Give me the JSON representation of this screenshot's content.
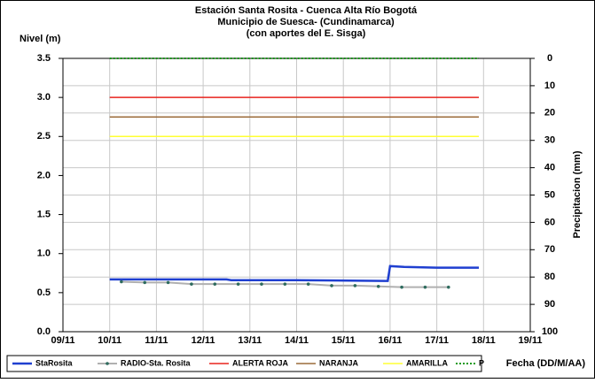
{
  "chart_data": {
    "type": "line",
    "title": [
      "Estación Santa Rosita - Cuenca Alta Río Bogotá",
      "Municipio de Suesca- (Cundinamarca)",
      "(con aportes del  E. Sisga)"
    ],
    "ylabel": "Nivel (m)",
    "y2label": "Precipitacion (mm)",
    "xlabel": "Fecha (DD/M/AA)",
    "xlim": [
      9,
      19
    ],
    "xticks": [
      {
        "value": 9,
        "label": "09/11"
      },
      {
        "value": 10,
        "label": "10/11"
      },
      {
        "value": 11,
        "label": "11/11"
      },
      {
        "value": 12,
        "label": "12/11"
      },
      {
        "value": 13,
        "label": "13/11"
      },
      {
        "value": 14,
        "label": "14/11"
      },
      {
        "value": 15,
        "label": "15/11"
      },
      {
        "value": 16,
        "label": "16/11"
      },
      {
        "value": 17,
        "label": "17/11"
      },
      {
        "value": 18,
        "label": "18/11"
      },
      {
        "value": 19,
        "label": "19/11"
      }
    ],
    "ylim": [
      0,
      3.5
    ],
    "yticks": [
      {
        "value": 0,
        "label": "0.0"
      },
      0.5,
      {
        "value": 1,
        "label": "1.0"
      },
      1.5,
      {
        "value": 2,
        "label": "2.0"
      },
      2.5,
      {
        "value": 3,
        "label": "3.0"
      },
      3.5
    ],
    "y2lim": [
      100,
      0
    ],
    "y2ticks": [
      0,
      10,
      20,
      30,
      40,
      50,
      60,
      70,
      80,
      90,
      100
    ],
    "grid": true,
    "series": [
      {
        "name": "StaRosita",
        "color": "#1f3fd0",
        "width": 2.5,
        "x": [
          10.0,
          12.5,
          12.6,
          14.0,
          15.9,
          15.95,
          16.0,
          16.3,
          17.0,
          17.9
        ],
        "values": [
          0.67,
          0.67,
          0.66,
          0.66,
          0.65,
          0.65,
          0.84,
          0.83,
          0.82,
          0.82
        ]
      },
      {
        "name": "RADIO-Sta. Rosita",
        "color": "#b0b0b0",
        "marker": "#2e6b5e",
        "width": 2,
        "x": [
          10.25,
          10.75,
          11.25,
          11.75,
          12.25,
          12.75,
          13.25,
          13.75,
          14.25,
          14.75,
          15.25,
          15.75,
          16.25,
          16.75,
          17.25
        ],
        "values": [
          0.64,
          0.63,
          0.63,
          0.61,
          0.61,
          0.61,
          0.61,
          0.61,
          0.61,
          0.59,
          0.59,
          0.58,
          0.57,
          0.57,
          0.57
        ]
      },
      {
        "name": "ALERTA ROJA",
        "color": "#e8231d",
        "width": 1.5,
        "x": [
          10.0,
          17.9
        ],
        "values": [
          3.0,
          3.0
        ]
      },
      {
        "name": "NARANJA",
        "color": "#9b6b3a",
        "width": 1.5,
        "x": [
          10.0,
          17.9
        ],
        "values": [
          2.75,
          2.75
        ]
      },
      {
        "name": "AMARILLA",
        "color": "#ffff33",
        "width": 1.5,
        "x": [
          10.0,
          17.9
        ],
        "values": [
          2.5,
          2.5
        ]
      },
      {
        "name": "P",
        "color": "#1a9a1a",
        "dots": true,
        "axis": "y2",
        "x": [
          10.0,
          10.5,
          11.0,
          11.5,
          12.0,
          12.5,
          13.0,
          13.5,
          14.0,
          14.5,
          15.0,
          15.5,
          16.0,
          16.5,
          17.0,
          17.5,
          17.9
        ],
        "values": [
          0,
          0,
          0,
          0,
          0,
          0,
          0,
          0,
          0,
          0,
          0,
          0,
          0,
          0,
          0,
          0,
          0
        ]
      }
    ]
  }
}
